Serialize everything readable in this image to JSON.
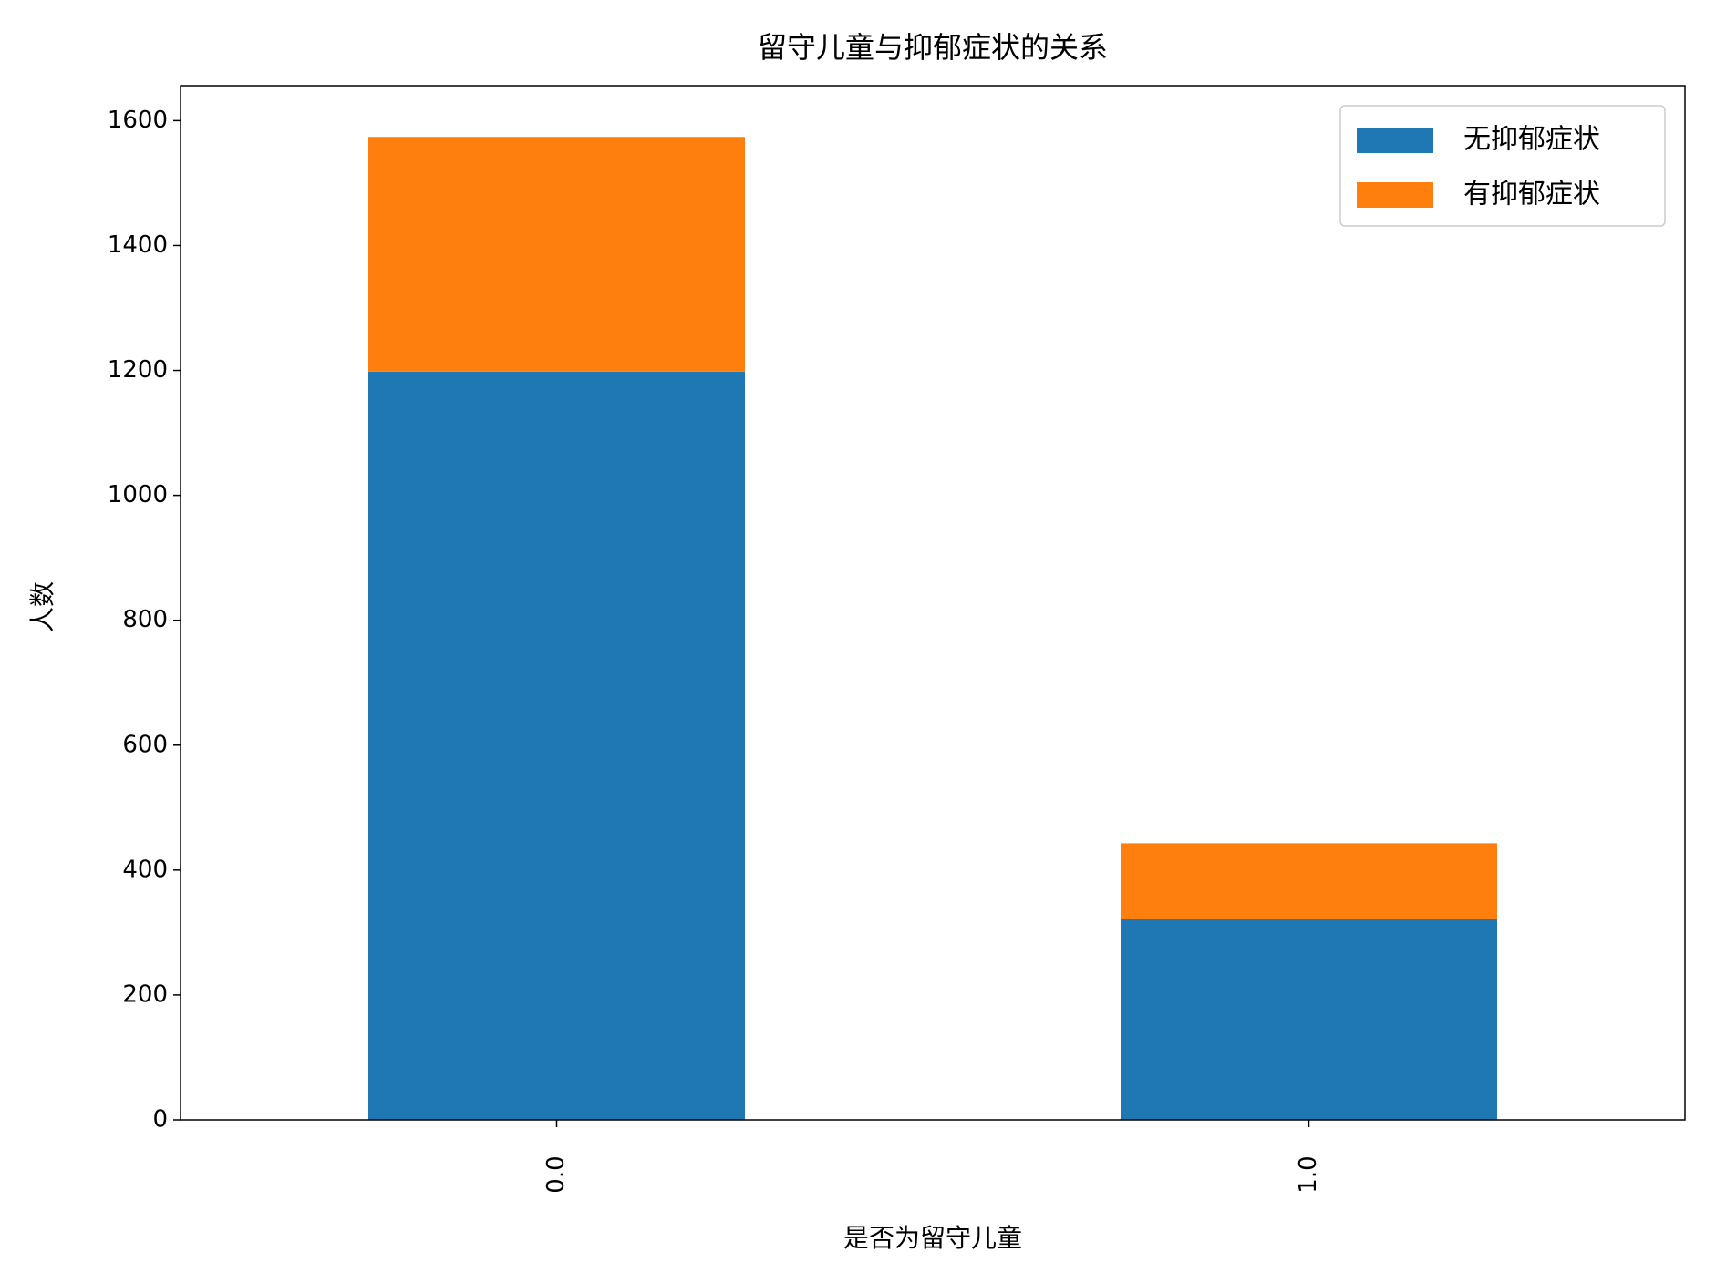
{
  "chart_data": {
    "type": "stacked_bar",
    "title": "留守儿童与抑郁症状的关系",
    "x_label": "是否为留守儿童",
    "y_label": "人数",
    "categories": [
      "0.0",
      "1.0"
    ],
    "series": [
      {
        "name": "无抑郁症状",
        "color": "#1f77b4",
        "values": [
          1198,
          322
        ]
      },
      {
        "name": "有抑郁症状",
        "color": "#ff7f0e",
        "values": [
          376,
          121
        ]
      }
    ],
    "ylim": [
      0,
      1656
    ],
    "yticks": [
      0,
      200,
      400,
      600,
      800,
      1000,
      1200,
      1400,
      1600
    ],
    "legend": "upper right"
  }
}
